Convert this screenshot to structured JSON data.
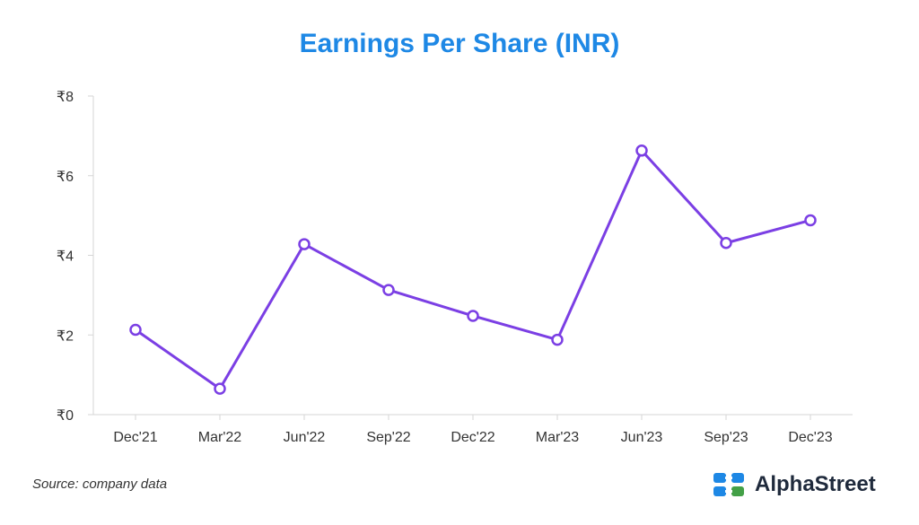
{
  "chart_data": {
    "type": "line",
    "title": "Earnings Per Share (INR)",
    "xlabel": "",
    "ylabel": "",
    "categories": [
      "Dec'21",
      "Mar'22",
      "Jun'22",
      "Sep'22",
      "Dec'22",
      "Mar'23",
      "Jun'23",
      "Sep'23",
      "Dec'23"
    ],
    "series": [
      {
        "values": [
          2.13,
          0.65,
          4.28,
          3.13,
          2.48,
          1.88,
          6.63,
          4.31,
          4.88
        ]
      }
    ],
    "ylim": [
      0,
      8
    ],
    "yticks": [
      0,
      2,
      4,
      6,
      8
    ],
    "ytick_labels": [
      "₹0",
      "₹2",
      "₹4",
      "₹6",
      "₹8"
    ],
    "grid": false,
    "colors": {
      "line": "#7b3fe4",
      "axis": "#d6d6d6",
      "title": "#1e88e5"
    }
  },
  "footer": {
    "source": "Source: company data",
    "brand": "AlphaStreet",
    "brand_icon": "alphastreet-logo-icon"
  }
}
